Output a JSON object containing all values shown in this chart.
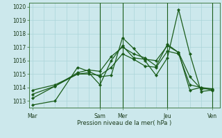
{
  "xlabel": "Pression niveau de la mer( hPa )",
  "ylim": [
    1012.5,
    1020.3
  ],
  "yticks": [
    1013,
    1014,
    1015,
    1016,
    1017,
    1018,
    1019,
    1020
  ],
  "bg_color": "#cce8ec",
  "grid_color": "#aad4d8",
  "line_color": "#1a5c1a",
  "dark_line_color": "#1a5c1a",
  "xtick_labels": [
    "Mar",
    "Sam",
    "Mer",
    "Jeu",
    "Ven"
  ],
  "xtick_positions": [
    0,
    36,
    48,
    72,
    96
  ],
  "xlim": [
    -2,
    100
  ],
  "vlines_x": [
    36,
    48,
    72,
    96
  ],
  "total_x": 96,
  "series": [
    {
      "x": [
        0,
        12,
        24,
        30,
        36,
        42,
        48,
        54,
        60,
        66,
        72,
        78,
        84,
        90,
        96
      ],
      "y": [
        1012.7,
        1013.0,
        1015.5,
        1015.2,
        1014.8,
        1014.9,
        1017.7,
        1016.9,
        1016.0,
        1014.9,
        1016.2,
        1019.8,
        1016.5,
        1013.7,
        1013.8
      ]
    },
    {
      "x": [
        0,
        12,
        24,
        30,
        36,
        42,
        48,
        54,
        60,
        66,
        72,
        78,
        84,
        90,
        96
      ],
      "y": [
        1013.2,
        1014.1,
        1015.1,
        1015.3,
        1015.2,
        1016.3,
        1017.0,
        1016.5,
        1016.2,
        1015.6,
        1017.2,
        1016.6,
        1013.8,
        1014.0,
        1013.8
      ]
    },
    {
      "x": [
        0,
        12,
        24,
        30,
        36,
        42,
        48,
        54,
        60,
        66,
        72,
        78,
        84,
        90,
        96
      ],
      "y": [
        1013.5,
        1014.1,
        1015.0,
        1015.1,
        1014.2,
        1016.0,
        1017.1,
        1016.2,
        1016.1,
        1016.0,
        1017.1,
        1016.6,
        1014.8,
        1013.9,
        1013.9
      ]
    },
    {
      "x": [
        0,
        12,
        24,
        30,
        36,
        42,
        48,
        54,
        60,
        66,
        72,
        78,
        84,
        90,
        96
      ],
      "y": [
        1013.8,
        1014.2,
        1015.0,
        1015.0,
        1014.9,
        1015.5,
        1016.5,
        1016.1,
        1015.6,
        1015.5,
        1016.7,
        1016.5,
        1014.2,
        1014.0,
        1013.9
      ]
    }
  ]
}
